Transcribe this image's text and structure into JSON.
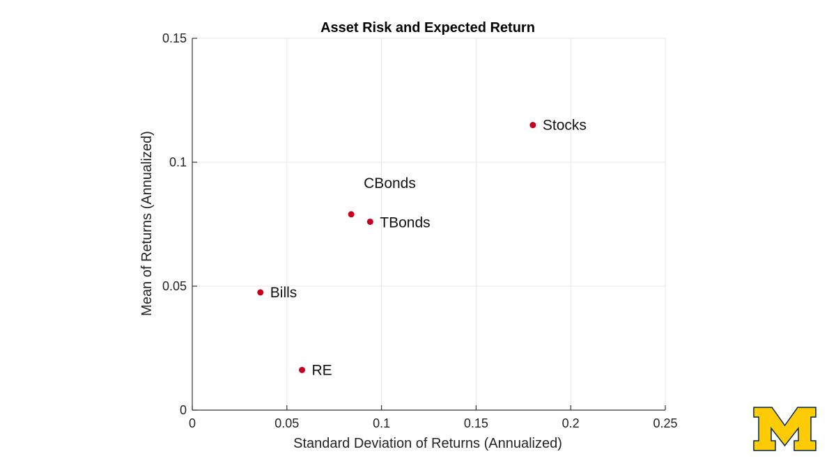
{
  "chart_data": {
    "type": "scatter",
    "title": "Asset Risk and Expected Return",
    "xlabel": "Standard Deviation of Returns (Annualized)",
    "ylabel": "Mean of Returns (Annualized)",
    "xlim": [
      0,
      0.25
    ],
    "ylim": [
      0,
      0.15
    ],
    "x_ticks": [
      "0",
      "0.05",
      "0.1",
      "0.15",
      "0.2",
      "0.25"
    ],
    "x_tick_values": [
      0,
      0.05,
      0.1,
      0.15,
      0.2,
      0.25
    ],
    "y_ticks": [
      "0",
      "0.05",
      "0.1",
      "0.15"
    ],
    "y_tick_values": [
      0,
      0.05,
      0.1,
      0.15
    ],
    "grid": true,
    "point_color": "#c8001e",
    "points": [
      {
        "label": "Stocks",
        "x": 0.18,
        "y": 0.115
      },
      {
        "label": "CBonds",
        "x": 0.084,
        "y": 0.079
      },
      {
        "label": "TBonds",
        "x": 0.094,
        "y": 0.076
      },
      {
        "label": "Bills",
        "x": 0.036,
        "y": 0.0475
      },
      {
        "label": "RE",
        "x": 0.058,
        "y": 0.0162
      }
    ]
  },
  "logo": {
    "name": "block-m-logo",
    "color": "#ffcb05",
    "outline": "#00274c"
  }
}
